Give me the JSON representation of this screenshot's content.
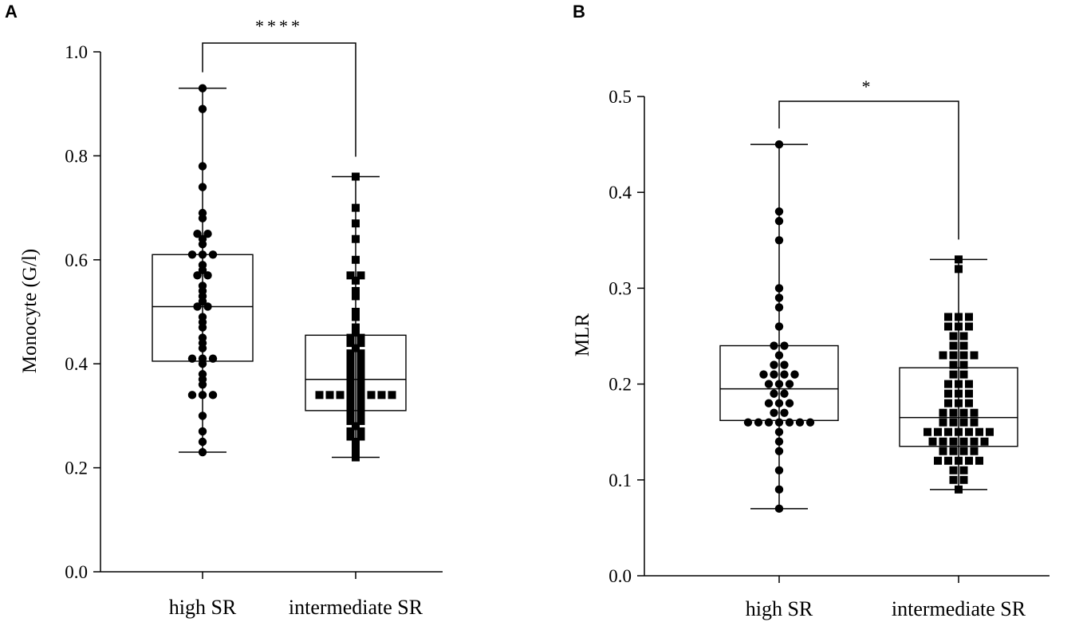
{
  "chart_data": [
    {
      "panel": "A",
      "type": "boxplot",
      "ylabel": "Monocyte (G/l)",
      "ylim": [
        0.0,
        1.0
      ],
      "yticks": [
        0.0,
        0.2,
        0.4,
        0.6,
        0.8,
        1.0
      ],
      "ytick_labels": [
        "0.0",
        "0.2",
        "0.4",
        "0.6",
        "0.8",
        "1.0"
      ],
      "categories": [
        "high SR",
        "intermediate SR"
      ],
      "significance": "****",
      "groups": [
        {
          "name": "high SR",
          "marker": "circle",
          "min": 0.23,
          "q1": 0.405,
          "median": 0.51,
          "q3": 0.61,
          "max": 0.93,
          "points": [
            0.93,
            0.89,
            0.78,
            0.74,
            0.69,
            0.68,
            0.65,
            0.65,
            0.64,
            0.63,
            0.61,
            0.61,
            0.61,
            0.59,
            0.58,
            0.57,
            0.57,
            0.55,
            0.54,
            0.53,
            0.52,
            0.51,
            0.51,
            0.49,
            0.48,
            0.47,
            0.45,
            0.44,
            0.43,
            0.41,
            0.41,
            0.41,
            0.4,
            0.38,
            0.37,
            0.36,
            0.34,
            0.34,
            0.34,
            0.3,
            0.27,
            0.25,
            0.23
          ]
        },
        {
          "name": "intermediate SR",
          "marker": "square",
          "min": 0.22,
          "q1": 0.31,
          "median": 0.37,
          "q3": 0.455,
          "max": 0.76,
          "points": [
            0.76,
            0.7,
            0.67,
            0.64,
            0.6,
            0.57,
            0.57,
            0.56,
            0.54,
            0.53,
            0.5,
            0.49,
            0.47,
            0.46,
            0.45,
            0.45,
            0.44,
            0.44,
            0.43,
            0.42,
            0.42,
            0.41,
            0.41,
            0.4,
            0.4,
            0.39,
            0.39,
            0.38,
            0.38,
            0.37,
            0.37,
            0.36,
            0.36,
            0.35,
            0.35,
            0.34,
            0.34,
            0.34,
            0.34,
            0.34,
            0.34,
            0.34,
            0.34,
            0.33,
            0.33,
            0.32,
            0.32,
            0.31,
            0.31,
            0.3,
            0.3,
            0.29,
            0.29,
            0.28,
            0.27,
            0.27,
            0.26,
            0.26,
            0.25,
            0.24,
            0.23,
            0.22
          ]
        }
      ]
    },
    {
      "panel": "B",
      "type": "boxplot",
      "ylabel": "MLR",
      "ylim": [
        0.0,
        0.5
      ],
      "yticks": [
        0.0,
        0.1,
        0.2,
        0.3,
        0.4,
        0.5
      ],
      "ytick_labels": [
        "0.0",
        "0.1",
        "0.2",
        "0.3",
        "0.4",
        "0.5"
      ],
      "categories": [
        "high SR",
        "intermediate SR"
      ],
      "significance": "*",
      "groups": [
        {
          "name": "high SR",
          "marker": "circle",
          "min": 0.07,
          "q1": 0.162,
          "median": 0.195,
          "q3": 0.24,
          "max": 0.45,
          "points": [
            0.45,
            0.38,
            0.37,
            0.35,
            0.3,
            0.29,
            0.28,
            0.26,
            0.24,
            0.24,
            0.23,
            0.22,
            0.22,
            0.21,
            0.21,
            0.21,
            0.21,
            0.2,
            0.2,
            0.2,
            0.19,
            0.19,
            0.18,
            0.18,
            0.18,
            0.17,
            0.17,
            0.16,
            0.16,
            0.16,
            0.16,
            0.16,
            0.16,
            0.16,
            0.15,
            0.14,
            0.13,
            0.11,
            0.09,
            0.07
          ]
        },
        {
          "name": "intermediate SR",
          "marker": "square",
          "min": 0.09,
          "q1": 0.135,
          "median": 0.165,
          "q3": 0.217,
          "max": 0.33,
          "points": [
            0.33,
            0.32,
            0.27,
            0.27,
            0.27,
            0.26,
            0.26,
            0.26,
            0.25,
            0.25,
            0.24,
            0.24,
            0.23,
            0.23,
            0.23,
            0.23,
            0.22,
            0.22,
            0.21,
            0.21,
            0.2,
            0.2,
            0.2,
            0.19,
            0.19,
            0.19,
            0.18,
            0.18,
            0.18,
            0.17,
            0.17,
            0.17,
            0.17,
            0.16,
            0.16,
            0.16,
            0.16,
            0.15,
            0.15,
            0.15,
            0.15,
            0.15,
            0.15,
            0.15,
            0.14,
            0.14,
            0.14,
            0.14,
            0.14,
            0.14,
            0.13,
            0.13,
            0.13,
            0.13,
            0.12,
            0.12,
            0.12,
            0.12,
            0.12,
            0.11,
            0.11,
            0.1,
            0.1,
            0.09
          ]
        }
      ]
    }
  ]
}
